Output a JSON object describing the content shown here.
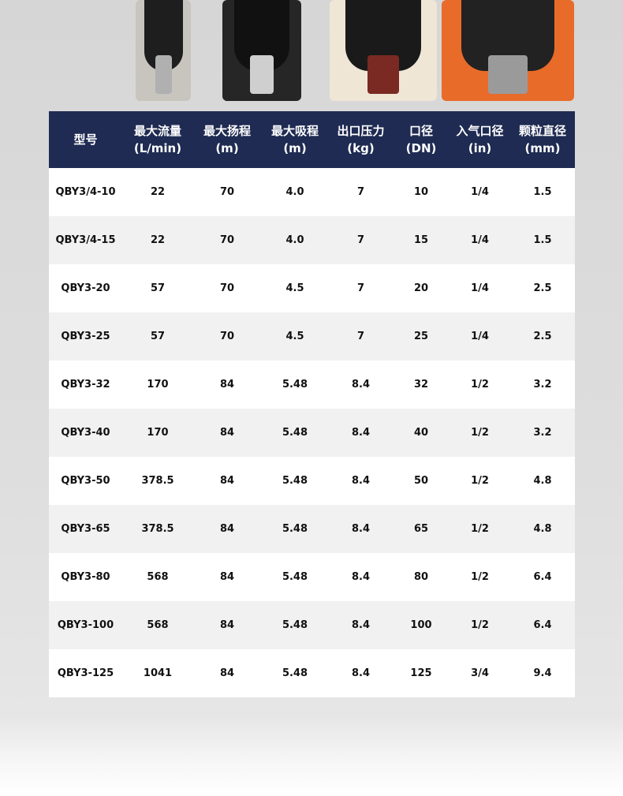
{
  "product_images": [
    {
      "name": "stainless-pump",
      "color": "#c8c4be",
      "core": "#1e1e1e",
      "cyl": "#b0b0b0"
    },
    {
      "name": "aluminum-black-pump",
      "color": "#262626",
      "core": "#111111",
      "cyl": "#cfcfcf"
    },
    {
      "name": "polypropylene-pump",
      "color": "#efe6d6",
      "core": "#1a1a1a",
      "cyl": "#7a2a22"
    },
    {
      "name": "cast-iron-orange-pump",
      "color": "#e86b2a",
      "core": "#222222",
      "cyl": "#9a9a9a"
    }
  ],
  "table": {
    "header_color": "#1f2b52",
    "headers": [
      {
        "l1": "型号",
        "l2": ""
      },
      {
        "l1": "最大流量",
        "l2": "(L/min)"
      },
      {
        "l1": "最大扬程",
        "l2": "(m)"
      },
      {
        "l1": "最大吸程",
        "l2": "(m)"
      },
      {
        "l1": "出口压力",
        "l2": "(kg)"
      },
      {
        "l1": "口径",
        "l2": "(DN)"
      },
      {
        "l1": "入气口径",
        "l2": "(in)"
      },
      {
        "l1": "颗粒直径",
        "l2": "(mm)"
      }
    ],
    "rows": [
      [
        "QBY3/4-10",
        "22",
        "70",
        "4.0",
        "7",
        "10",
        "1/4",
        "1.5"
      ],
      [
        "QBY3/4-15",
        "22",
        "70",
        "4.0",
        "7",
        "15",
        "1/4",
        "1.5"
      ],
      [
        "QBY3-20",
        "57",
        "70",
        "4.5",
        "7",
        "20",
        "1/4",
        "2.5"
      ],
      [
        "QBY3-25",
        "57",
        "70",
        "4.5",
        "7",
        "25",
        "1/4",
        "2.5"
      ],
      [
        "QBY3-32",
        "170",
        "84",
        "5.48",
        "8.4",
        "32",
        "1/2",
        "3.2"
      ],
      [
        "QBY3-40",
        "170",
        "84",
        "5.48",
        "8.4",
        "40",
        "1/2",
        "3.2"
      ],
      [
        "QBY3-50",
        "378.5",
        "84",
        "5.48",
        "8.4",
        "50",
        "1/2",
        "4.8"
      ],
      [
        "QBY3-65",
        "378.5",
        "84",
        "5.48",
        "8.4",
        "65",
        "1/2",
        "4.8"
      ],
      [
        "QBY3-80",
        "568",
        "84",
        "5.48",
        "8.4",
        "80",
        "1/2",
        "6.4"
      ],
      [
        "QBY3-100",
        "568",
        "84",
        "5.48",
        "8.4",
        "100",
        "1/2",
        "6.4"
      ],
      [
        "QBY3-125",
        "1041",
        "84",
        "5.48",
        "8.4",
        "125",
        "3/4",
        "9.4"
      ]
    ]
  }
}
